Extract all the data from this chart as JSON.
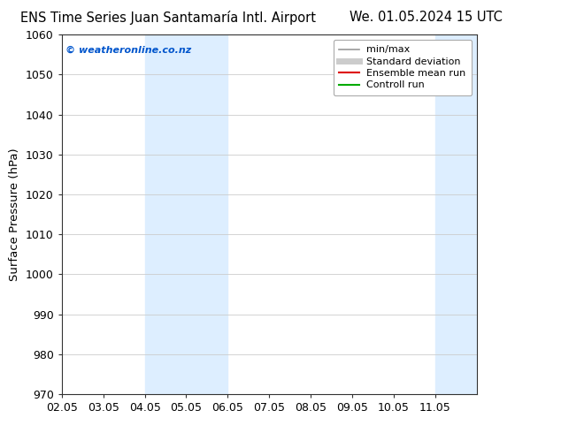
{
  "title_left": "ENS Time Series Juan Santamaría Intl. Airport",
  "title_right": "We. 01.05.2024 15 UTC",
  "ylabel": "Surface Pressure (hPa)",
  "ylim": [
    970,
    1060
  ],
  "yticks": [
    970,
    980,
    990,
    1000,
    1010,
    1020,
    1030,
    1040,
    1050,
    1060
  ],
  "xlim": [
    0,
    10
  ],
  "xtick_labels": [
    "02.05",
    "03.05",
    "04.05",
    "05.05",
    "06.05",
    "07.05",
    "08.05",
    "09.05",
    "10.05",
    "11.05"
  ],
  "xtick_positions": [
    0,
    1,
    2,
    3,
    4,
    5,
    6,
    7,
    8,
    9
  ],
  "watermark": "© weatheronline.co.nz",
  "watermark_color": "#0055cc",
  "shaded_regions": [
    {
      "xmin": 2.0,
      "xmax": 3.0,
      "color": "#ddeeff"
    },
    {
      "xmin": 3.0,
      "xmax": 4.0,
      "color": "#ddeeff"
    },
    {
      "xmin": 9.0,
      "xmax": 9.5,
      "color": "#ddeeff"
    },
    {
      "xmin": 9.5,
      "xmax": 10.0,
      "color": "#ddeeff"
    }
  ],
  "legend_items": [
    {
      "label": "min/max",
      "color": "#999999",
      "lw": 1.2,
      "linestyle": "-"
    },
    {
      "label": "Standard deviation",
      "color": "#cccccc",
      "lw": 5,
      "linestyle": "-"
    },
    {
      "label": "Ensemble mean run",
      "color": "#dd0000",
      "lw": 1.5,
      "linestyle": "-"
    },
    {
      "label": "Controll run",
      "color": "#00aa00",
      "lw": 1.5,
      "linestyle": "-"
    }
  ],
  "background_color": "#ffffff",
  "grid_color": "#cccccc",
  "title_fontsize": 10.5,
  "axis_fontsize": 9,
  "legend_fontsize": 8
}
